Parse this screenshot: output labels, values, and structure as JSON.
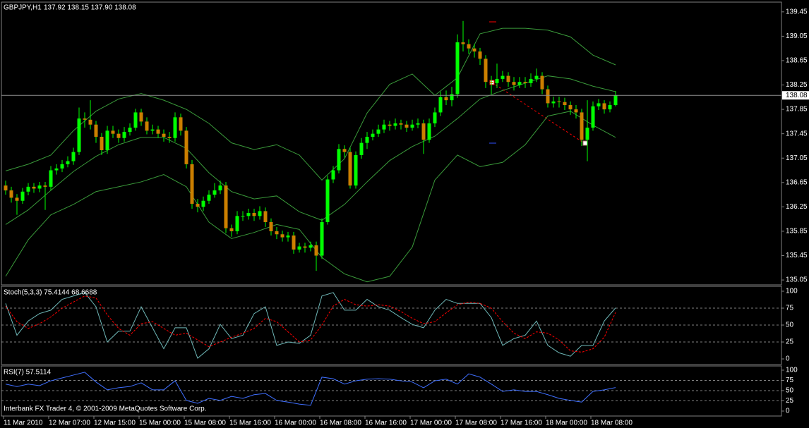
{
  "chart_data": [
    {
      "type": "candlestick",
      "title": "GBPJPY,H1",
      "subtitle": "137.92 138.15 137.90 138.08",
      "up_color": "#00ff00",
      "down_color": "#cc7f00",
      "wick_color": "#00ff00",
      "xlim": [
        -0.75,
        137.375
      ],
      "ylim": [
        134.97,
        139.61
      ],
      "yticks": [
        135.05,
        135.45,
        135.85,
        136.25,
        136.65,
        137.05,
        137.45,
        137.85,
        138.25,
        138.65,
        139.05,
        139.45
      ],
      "grid": false,
      "last_price": 138.08,
      "open": [
        136.6,
        136.52,
        136.4,
        136.35,
        136.5,
        136.58,
        136.55,
        136.6,
        136.58,
        136.85,
        136.88,
        136.95,
        137.0,
        137.15,
        137.7,
        137.68,
        137.6,
        137.4,
        137.18,
        137.5,
        137.45,
        137.38,
        137.48,
        137.55,
        137.8,
        137.65,
        137.5,
        137.52,
        137.45,
        137.4,
        137.38,
        137.72,
        137.5,
        136.95,
        136.3,
        136.25,
        136.35,
        136.45,
        136.52,
        136.6,
        135.9,
        135.85,
        136.1,
        136.1,
        136.15,
        136.1,
        136.18,
        136.0,
        135.85,
        135.8,
        135.75,
        135.78,
        135.55,
        135.6,
        135.58,
        135.62,
        135.45,
        136.0,
        136.7,
        136.85,
        137.2,
        137.15,
        136.6,
        137.1,
        137.3,
        137.4,
        137.45,
        137.52,
        137.6,
        137.58,
        137.62,
        137.6,
        137.55,
        137.6,
        137.62,
        137.35,
        137.62,
        137.8,
        138.05,
        138.0,
        138.1,
        138.95,
        138.92,
        138.85,
        138.8,
        138.68,
        138.3,
        138.28,
        138.35,
        138.4,
        138.3,
        138.25,
        138.3,
        138.28,
        138.35,
        138.4,
        138.18,
        137.95,
        137.98,
        137.97,
        137.92,
        137.85,
        137.8,
        137.35,
        137.55,
        137.9,
        137.95,
        137.85,
        137.92
      ],
      "high": [
        136.68,
        136.58,
        136.46,
        136.56,
        136.64,
        136.64,
        136.66,
        136.66,
        136.92,
        136.95,
        137.02,
        137.08,
        137.22,
        137.88,
        137.8,
        138.0,
        137.66,
        137.46,
        137.58,
        137.58,
        137.52,
        137.56,
        137.62,
        137.86,
        137.86,
        137.72,
        137.6,
        137.58,
        137.52,
        137.48,
        137.8,
        137.78,
        137.56,
        137.02,
        136.38,
        136.42,
        136.52,
        136.64,
        136.68,
        136.66,
        135.96,
        136.18,
        136.18,
        136.22,
        136.22,
        136.26,
        136.24,
        136.06,
        135.92,
        135.86,
        135.84,
        135.84,
        135.66,
        135.66,
        135.68,
        135.68,
        136.06,
        136.76,
        136.92,
        137.28,
        137.26,
        137.22,
        137.16,
        137.38,
        137.48,
        137.52,
        137.6,
        137.68,
        137.66,
        137.7,
        137.68,
        137.66,
        137.68,
        137.7,
        137.68,
        137.7,
        137.88,
        138.14,
        138.16,
        138.22,
        139.08,
        139.3,
        139.0,
        138.92,
        138.86,
        138.74,
        138.4,
        138.6,
        138.48,
        138.46,
        138.38,
        138.38,
        138.38,
        138.44,
        138.52,
        138.46,
        138.24,
        138.06,
        138.06,
        138.04,
        137.98,
        137.92,
        137.86,
        138.0,
        137.98,
        138.02,
        138.0,
        137.98,
        138.15
      ],
      "low": [
        136.45,
        136.32,
        136.12,
        136.3,
        136.44,
        136.48,
        136.49,
        136.2,
        136.52,
        136.78,
        136.82,
        136.9,
        136.94,
        137.1,
        137.55,
        137.52,
        137.3,
        137.1,
        137.12,
        137.38,
        137.3,
        137.32,
        137.42,
        137.5,
        137.58,
        137.44,
        137.44,
        137.38,
        137.32,
        137.3,
        137.32,
        137.42,
        136.88,
        136.22,
        136.16,
        136.18,
        136.3,
        136.4,
        136.46,
        135.82,
        135.76,
        135.8,
        136.02,
        136.04,
        136.02,
        136.04,
        135.92,
        135.78,
        135.72,
        135.68,
        135.68,
        135.48,
        135.5,
        135.5,
        135.52,
        135.2,
        135.4,
        135.96,
        136.64,
        136.8,
        137.06,
        136.55,
        136.55,
        137.04,
        137.2,
        137.34,
        137.4,
        137.46,
        137.5,
        137.52,
        137.52,
        137.48,
        137.5,
        137.54,
        137.12,
        137.3,
        137.56,
        137.74,
        137.92,
        137.9,
        138.04,
        138.8,
        138.76,
        138.7,
        138.58,
        138.2,
        138.1,
        138.2,
        138.3,
        138.22,
        138.16,
        138.2,
        138.2,
        138.22,
        138.3,
        138.1,
        137.88,
        137.88,
        137.88,
        137.84,
        137.76,
        137.7,
        137.25,
        137.0,
        137.5,
        137.84,
        137.78,
        137.8,
        137.9
      ],
      "close": [
        136.52,
        136.4,
        136.35,
        136.5,
        136.58,
        136.55,
        136.6,
        136.58,
        136.85,
        136.88,
        136.95,
        137.0,
        137.15,
        137.7,
        137.68,
        137.6,
        137.4,
        137.18,
        137.5,
        137.45,
        137.38,
        137.48,
        137.55,
        137.8,
        137.65,
        137.5,
        137.52,
        137.45,
        137.4,
        137.38,
        137.72,
        137.5,
        136.95,
        136.3,
        136.25,
        136.35,
        136.45,
        136.52,
        136.6,
        135.9,
        135.85,
        136.1,
        136.1,
        136.15,
        136.1,
        136.18,
        136.0,
        135.85,
        135.8,
        135.75,
        135.78,
        135.55,
        135.6,
        135.58,
        135.62,
        135.45,
        136.0,
        136.7,
        136.85,
        137.2,
        137.15,
        136.6,
        137.1,
        137.3,
        137.4,
        137.45,
        137.52,
        137.6,
        137.58,
        137.62,
        137.6,
        137.55,
        137.6,
        137.62,
        137.35,
        137.62,
        137.8,
        138.05,
        138.0,
        138.1,
        138.95,
        138.92,
        138.85,
        138.8,
        138.68,
        138.3,
        138.28,
        138.35,
        138.4,
        138.3,
        138.25,
        138.3,
        138.28,
        138.35,
        138.4,
        138.18,
        137.95,
        137.98,
        137.97,
        137.92,
        137.85,
        137.8,
        137.35,
        137.55,
        137.9,
        137.95,
        137.85,
        137.92,
        138.08
      ],
      "overlays": [
        {
          "color": "#3a9a3a",
          "x": [
            0,
            4,
            8,
            12,
            16,
            20,
            24,
            28,
            32,
            36,
            40,
            44,
            48,
            52,
            56,
            60,
            64,
            68,
            72,
            76,
            80,
            84,
            88,
            92,
            96,
            100,
            104,
            108
          ],
          "values": [
            136.84,
            136.95,
            137.1,
            137.5,
            137.82,
            138.02,
            138.11,
            138.0,
            137.85,
            137.62,
            137.3,
            137.19,
            137.27,
            137.1,
            136.69,
            137.04,
            137.79,
            138.26,
            138.43,
            138.08,
            138.37,
            139.09,
            139.18,
            139.18,
            139.15,
            139.04,
            138.74,
            138.58
          ]
        },
        {
          "color": "#3a9a3a",
          "x": [
            0,
            4,
            8,
            12,
            16,
            20,
            24,
            28,
            32,
            36,
            40,
            44,
            48,
            52,
            56,
            60,
            64,
            68,
            72,
            76,
            80,
            84,
            88,
            92,
            96,
            100,
            104,
            108
          ],
          "values": [
            135.96,
            136.2,
            136.52,
            136.83,
            137.08,
            137.27,
            137.39,
            137.39,
            137.21,
            136.81,
            136.5,
            136.38,
            136.43,
            136.17,
            136.03,
            136.29,
            136.66,
            137.01,
            137.24,
            137.41,
            137.7,
            138.02,
            138.16,
            138.28,
            138.4,
            138.35,
            138.23,
            138.14
          ]
        },
        {
          "color": "#3a9a3a",
          "x": [
            0,
            4,
            8,
            12,
            16,
            20,
            24,
            28,
            32,
            36,
            40,
            44,
            48,
            52,
            56,
            60,
            64,
            68,
            72,
            76,
            80,
            84,
            88,
            92,
            96,
            100,
            104,
            108
          ],
          "values": [
            135.11,
            135.71,
            136.12,
            136.29,
            136.5,
            136.58,
            136.66,
            136.78,
            136.58,
            136.0,
            135.73,
            135.83,
            135.96,
            135.88,
            135.42,
            135.15,
            135.02,
            135.11,
            135.59,
            136.69,
            137.1,
            136.91,
            136.98,
            137.27,
            137.74,
            137.82,
            137.59,
            137.39
          ]
        }
      ]
    },
    {
      "type": "line",
      "title": "Stoch(5,3,3) 75.4144 68.6688",
      "xlim": [
        -0.75,
        137.375
      ],
      "ylim": [
        -8.3,
        107.3
      ],
      "yticks": [
        0,
        25,
        50,
        75,
        100
      ],
      "grid": true,
      "x": [
        0,
        2,
        4,
        6,
        8,
        10,
        12,
        14,
        16,
        18,
        20,
        22,
        24,
        26,
        28,
        30,
        32,
        34,
        36,
        38,
        40,
        42,
        44,
        46,
        48,
        50,
        52,
        54,
        56,
        58,
        60,
        62,
        64,
        66,
        68,
        70,
        72,
        74,
        76,
        78,
        80,
        82,
        84,
        86,
        88,
        90,
        92,
        94,
        96,
        98,
        100,
        102,
        104,
        106,
        108
      ],
      "series": [
        {
          "color": "#6fb8b8",
          "values": [
            82,
            35,
            56,
            67,
            72,
            88,
            93,
            98,
            77,
            25,
            41,
            41,
            77,
            46,
            15,
            46,
            46,
            1,
            15,
            51,
            30,
            35,
            67,
            77,
            20,
            25,
            23,
            35,
            93,
            98,
            72,
            72,
            88,
            77,
            72,
            61,
            51,
            46,
            72,
            88,
            82,
            82,
            82,
            61,
            20,
            30,
            35,
            56,
            20,
            9,
            4,
            20,
            20,
            56,
            75.41
          ]
        },
        {
          "color": "#ff0000",
          "dashed": true,
          "values": [
            78,
            55,
            45,
            52,
            62,
            75,
            84,
            93,
            90,
            65,
            45,
            35,
            52,
            55,
            45,
            35,
            38,
            28,
            18,
            25,
            32,
            38,
            45,
            60,
            55,
            40,
            25,
            28,
            50,
            78,
            88,
            80,
            78,
            80,
            78,
            70,
            60,
            52,
            55,
            68,
            80,
            84,
            82,
            75,
            55,
            38,
            30,
            40,
            38,
            28,
            12,
            10,
            15,
            32,
            68.67
          ]
        }
      ]
    },
    {
      "type": "line",
      "title": "RSI(7) 57.5114",
      "note": "Interbank FX Trader 4, © 2001-2009 MetaQuotes Software Corp.",
      "xlim": [
        -0.75,
        137.375
      ],
      "ylim": [
        -12.1,
        110.3
      ],
      "yticks": [
        0,
        25,
        50,
        75,
        100
      ],
      "grid": true,
      "xticks": [
        {
          "value": 0,
          "label": "11 Mar 2010"
        },
        {
          "value": 8,
          "label": "12 Mar 07:00"
        },
        {
          "value": 16,
          "label": "12 Mar 15:00"
        },
        {
          "value": 24,
          "label": "15 Mar 00:00"
        },
        {
          "value": 32,
          "label": "15 Mar 08:00"
        },
        {
          "value": 40,
          "label": "15 Mar 16:00"
        },
        {
          "value": 48,
          "label": "16 Mar 00:00"
        },
        {
          "value": 56,
          "label": "16 Mar 08:00"
        },
        {
          "value": 64,
          "label": "16 Mar 16:00"
        },
        {
          "value": 72,
          "label": "17 Mar 00:00"
        },
        {
          "value": 80,
          "label": "17 Mar 08:00"
        },
        {
          "value": 88,
          "label": "17 Mar 16:00"
        },
        {
          "value": 96,
          "label": "18 Mar 00:00"
        },
        {
          "value": 104,
          "label": "18 Mar 08:00"
        }
      ],
      "x": [
        0,
        2,
        4,
        6,
        8,
        10,
        12,
        14,
        16,
        18,
        20,
        22,
        24,
        26,
        28,
        30,
        32,
        34,
        36,
        38,
        40,
        42,
        44,
        46,
        48,
        50,
        52,
        54,
        56,
        58,
        60,
        62,
        64,
        66,
        68,
        70,
        72,
        74,
        76,
        78,
        80,
        82,
        84,
        86,
        88,
        90,
        92,
        94,
        96,
        98,
        100,
        102,
        104,
        106,
        108
      ],
      "series": [
        {
          "color": "#3f6fff",
          "values": [
            66,
            60,
            66,
            62,
            74,
            81,
            88,
            95,
            71,
            52,
            57,
            60,
            69,
            52,
            52,
            74,
            26,
            19,
            31,
            26,
            36,
            31,
            40,
            43,
            26,
            22,
            17,
            14,
            83,
            79,
            66,
            74,
            78,
            79,
            78,
            74,
            71,
            57,
            74,
            78,
            66,
            91,
            83,
            66,
            48,
            52,
            48,
            48,
            40,
            31,
            26,
            22,
            48,
            52,
            57.51
          ]
        }
      ]
    }
  ]
}
